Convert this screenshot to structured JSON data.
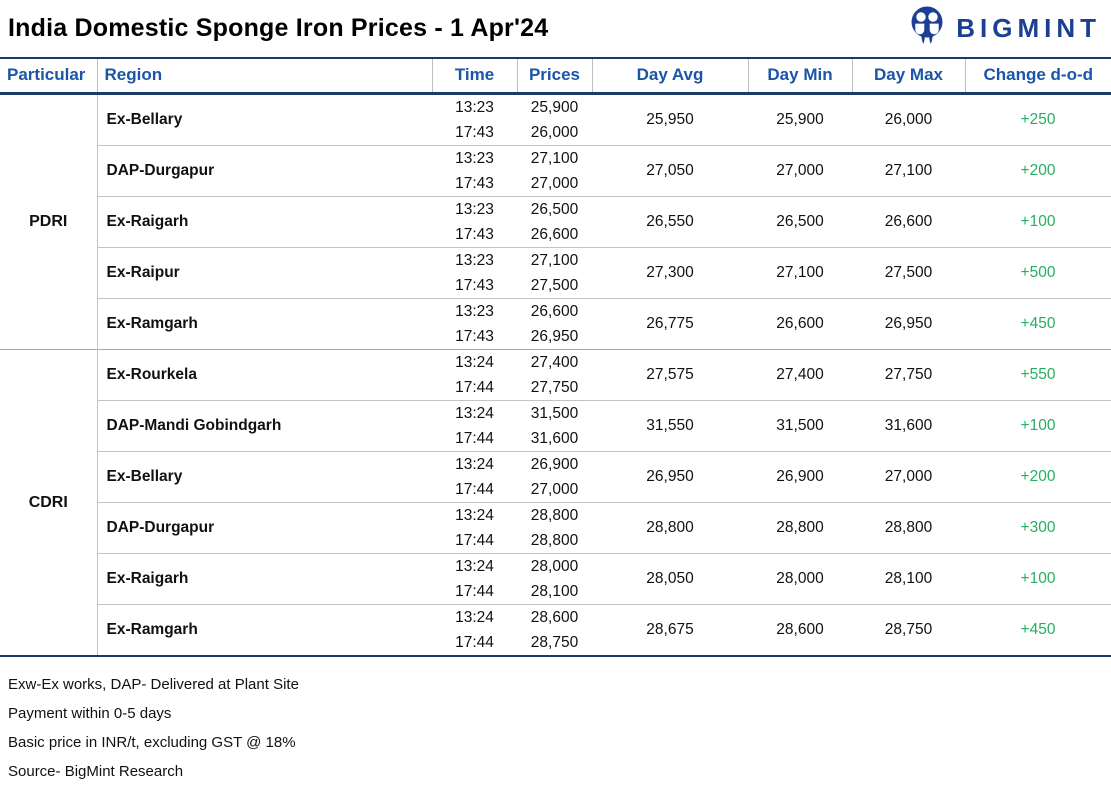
{
  "header": {
    "title": "India Domestic Sponge Iron Prices - 1 Apr'24",
    "brand": "BIGMINT"
  },
  "chart_data": {
    "type": "table",
    "title": "India Domestic Sponge Iron Prices - 1 Apr'24",
    "columns": [
      "Particular",
      "Region",
      "Time",
      "Prices",
      "Day Avg",
      "Day Min",
      "Day Max",
      "Change d-o-d"
    ],
    "groups": [
      {
        "particular": "PDRI",
        "rows": [
          {
            "region": "Ex-Bellary",
            "entries": [
              {
                "time": "13:23",
                "price": "25,900"
              },
              {
                "time": "17:43",
                "price": "26,000"
              }
            ],
            "day_avg": "25,950",
            "day_min": "25,900",
            "day_max": "26,000",
            "change": "+250"
          },
          {
            "region": "DAP-Durgapur",
            "entries": [
              {
                "time": "13:23",
                "price": "27,100"
              },
              {
                "time": "17:43",
                "price": "27,000"
              }
            ],
            "day_avg": "27,050",
            "day_min": "27,000",
            "day_max": "27,100",
            "change": "+200"
          },
          {
            "region": "Ex-Raigarh",
            "entries": [
              {
                "time": "13:23",
                "price": "26,500"
              },
              {
                "time": "17:43",
                "price": "26,600"
              }
            ],
            "day_avg": "26,550",
            "day_min": "26,500",
            "day_max": "26,600",
            "change": "+100"
          },
          {
            "region": "Ex-Raipur",
            "entries": [
              {
                "time": "13:23",
                "price": "27,100"
              },
              {
                "time": "17:43",
                "price": "27,500"
              }
            ],
            "day_avg": "27,300",
            "day_min": "27,100",
            "day_max": "27,500",
            "change": "+500"
          },
          {
            "region": "Ex-Ramgarh",
            "entries": [
              {
                "time": "13:23",
                "price": "26,600"
              },
              {
                "time": "17:43",
                "price": "26,950"
              }
            ],
            "day_avg": "26,775",
            "day_min": "26,600",
            "day_max": "26,950",
            "change": "+450"
          }
        ]
      },
      {
        "particular": "CDRI",
        "rows": [
          {
            "region": "Ex-Rourkela",
            "entries": [
              {
                "time": "13:24",
                "price": "27,400"
              },
              {
                "time": "17:44",
                "price": "27,750"
              }
            ],
            "day_avg": "27,575",
            "day_min": "27,400",
            "day_max": "27,750",
            "change": "+550"
          },
          {
            "region": "DAP-Mandi Gobindgarh",
            "entries": [
              {
                "time": "13:24",
                "price": "31,500"
              },
              {
                "time": "17:44",
                "price": "31,600"
              }
            ],
            "day_avg": "31,550",
            "day_min": "31,500",
            "day_max": "31,600",
            "change": "+100"
          },
          {
            "region": "Ex-Bellary",
            "entries": [
              {
                "time": "13:24",
                "price": "26,900"
              },
              {
                "time": "17:44",
                "price": "27,000"
              }
            ],
            "day_avg": "26,950",
            "day_min": "26,900",
            "day_max": "27,000",
            "change": "+200"
          },
          {
            "region": "DAP-Durgapur",
            "entries": [
              {
                "time": "13:24",
                "price": "28,800"
              },
              {
                "time": "17:44",
                "price": "28,800"
              }
            ],
            "day_avg": "28,800",
            "day_min": "28,800",
            "day_max": "28,800",
            "change": "+300"
          },
          {
            "region": "Ex-Raigarh",
            "entries": [
              {
                "time": "13:24",
                "price": "28,000"
              },
              {
                "time": "17:44",
                "price": "28,100"
              }
            ],
            "day_avg": "28,050",
            "day_min": "28,000",
            "day_max": "28,100",
            "change": "+100"
          },
          {
            "region": "Ex-Ramgarh",
            "entries": [
              {
                "time": "13:24",
                "price": "28,600"
              },
              {
                "time": "17:44",
                "price": "28,750"
              }
            ],
            "day_avg": "28,675",
            "day_min": "28,600",
            "day_max": "28,750",
            "change": "+450"
          }
        ]
      }
    ]
  },
  "footnotes": [
    "Exw-Ex works, DAP- Delivered at Plant Site",
    "Payment within 0-5 days",
    "Basic price in INR/t, excluding GST @ 18%",
    "Source- BigMint Research"
  ],
  "colors": {
    "header_text": "#1B55A8",
    "border_navy": "#1B3A66",
    "row_divider": "#C3C3C3",
    "positive_change": "#27AE60",
    "brand_blue": "#1C3F94"
  }
}
